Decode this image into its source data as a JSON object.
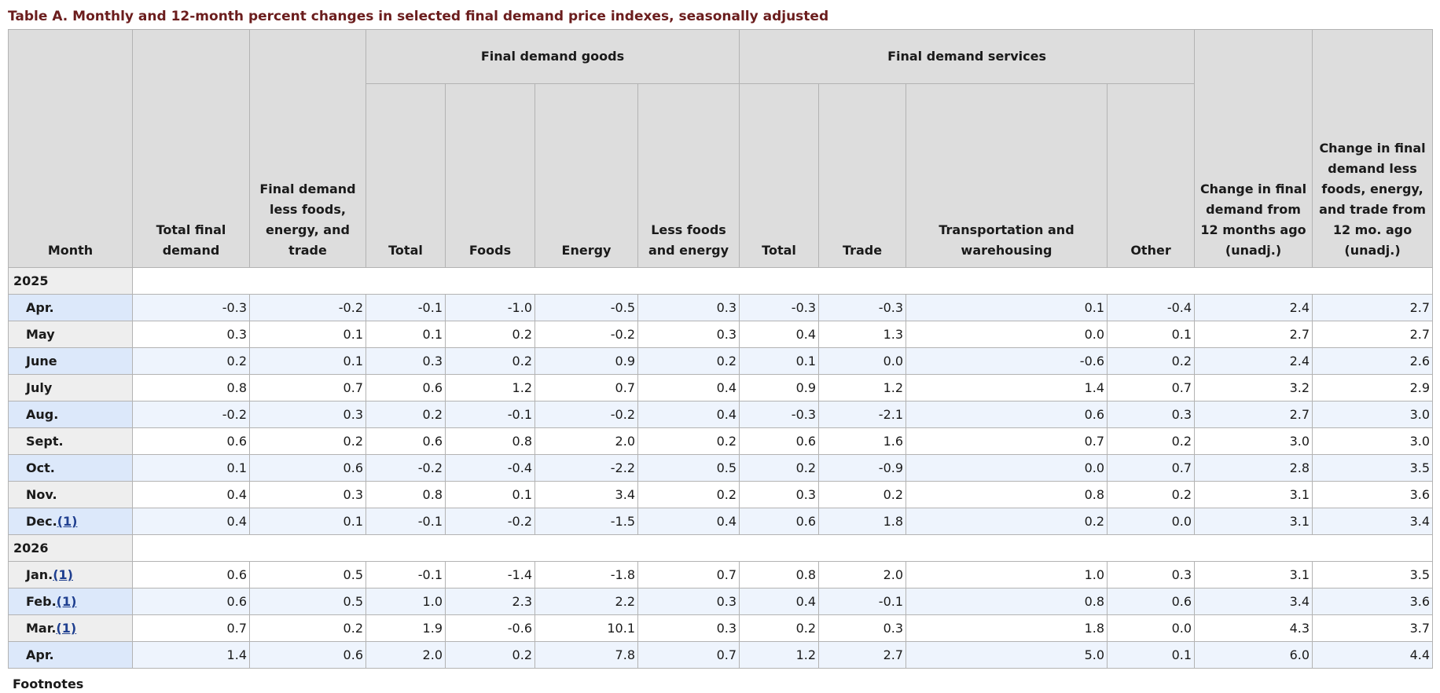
{
  "caption": "Table A. Monthly and 12-month percent changes in selected final demand price indexes, seasonally adjusted",
  "headers": {
    "month": "Month",
    "total_final_demand": "Total final demand",
    "fd_less_fet": "Final demand less foods, energy, and trade",
    "goods_group": "Final demand goods",
    "services_group": "Final demand services",
    "goods": [
      "Total",
      "Foods",
      "Energy",
      "Less foods and energy"
    ],
    "services": [
      "Total",
      "Trade",
      "Transportation and warehousing",
      "Other"
    ],
    "change_12mo": "Change in final demand from 12 months ago (unadj.)",
    "change_12mo_core": "Change in final demand less foods, energy, and trade from 12 mo. ago (unadj.)"
  },
  "sections": [
    {
      "year": "2025",
      "rows": [
        {
          "month": "Apr.",
          "footnote": "",
          "values": [
            "-0.3",
            "-0.2",
            "-0.1",
            "-1.0",
            "-0.5",
            "0.3",
            "-0.3",
            "-0.3",
            "0.1",
            "-0.4",
            "2.4",
            "2.7"
          ]
        },
        {
          "month": "May",
          "footnote": "",
          "values": [
            "0.3",
            "0.1",
            "0.1",
            "0.2",
            "-0.2",
            "0.3",
            "0.4",
            "1.3",
            "0.0",
            "0.1",
            "2.7",
            "2.7"
          ]
        },
        {
          "month": "June",
          "footnote": "",
          "values": [
            "0.2",
            "0.1",
            "0.3",
            "0.2",
            "0.9",
            "0.2",
            "0.1",
            "0.0",
            "-0.6",
            "0.2",
            "2.4",
            "2.6"
          ]
        },
        {
          "month": "July",
          "footnote": "",
          "values": [
            "0.8",
            "0.7",
            "0.6",
            "1.2",
            "0.7",
            "0.4",
            "0.9",
            "1.2",
            "1.4",
            "0.7",
            "3.2",
            "2.9"
          ]
        },
        {
          "month": "Aug.",
          "footnote": "",
          "values": [
            "-0.2",
            "0.3",
            "0.2",
            "-0.1",
            "-0.2",
            "0.4",
            "-0.3",
            "-2.1",
            "0.6",
            "0.3",
            "2.7",
            "3.0"
          ]
        },
        {
          "month": "Sept.",
          "footnote": "",
          "values": [
            "0.6",
            "0.2",
            "0.6",
            "0.8",
            "2.0",
            "0.2",
            "0.6",
            "1.6",
            "0.7",
            "0.2",
            "3.0",
            "3.0"
          ]
        },
        {
          "month": "Oct.",
          "footnote": "",
          "values": [
            "0.1",
            "0.6",
            "-0.2",
            "-0.4",
            "-2.2",
            "0.5",
            "0.2",
            "-0.9",
            "0.0",
            "0.7",
            "2.8",
            "3.5"
          ]
        },
        {
          "month": "Nov.",
          "footnote": "",
          "values": [
            "0.4",
            "0.3",
            "0.8",
            "0.1",
            "3.4",
            "0.2",
            "0.3",
            "0.2",
            "0.8",
            "0.2",
            "3.1",
            "3.6"
          ]
        },
        {
          "month": "Dec.",
          "footnote": "(1)",
          "values": [
            "0.4",
            "0.1",
            "-0.1",
            "-0.2",
            "-1.5",
            "0.4",
            "0.6",
            "1.8",
            "0.2",
            "0.0",
            "3.1",
            "3.4"
          ]
        }
      ]
    },
    {
      "year": "2026",
      "rows": [
        {
          "month": "Jan.",
          "footnote": "(1)",
          "values": [
            "0.6",
            "0.5",
            "-0.1",
            "-1.4",
            "-1.8",
            "0.7",
            "0.8",
            "2.0",
            "1.0",
            "0.3",
            "3.1",
            "3.5"
          ]
        },
        {
          "month": "Feb.",
          "footnote": "(1)",
          "values": [
            "0.6",
            "0.5",
            "1.0",
            "2.3",
            "2.2",
            "0.3",
            "0.4",
            "-0.1",
            "0.8",
            "0.6",
            "3.4",
            "3.6"
          ]
        },
        {
          "month": "Mar.",
          "footnote": "(1)",
          "values": [
            "0.7",
            "0.2",
            "1.9",
            "-0.6",
            "10.1",
            "0.3",
            "0.2",
            "0.3",
            "1.8",
            "0.0",
            "4.3",
            "3.7"
          ]
        },
        {
          "month": "Apr.",
          "footnote": "",
          "values": [
            "1.4",
            "0.6",
            "2.0",
            "0.2",
            "7.8",
            "0.7",
            "1.2",
            "2.7",
            "5.0",
            "0.1",
            "6.0",
            "4.4"
          ]
        }
      ]
    }
  ],
  "footnotes_label": "Footnotes"
}
